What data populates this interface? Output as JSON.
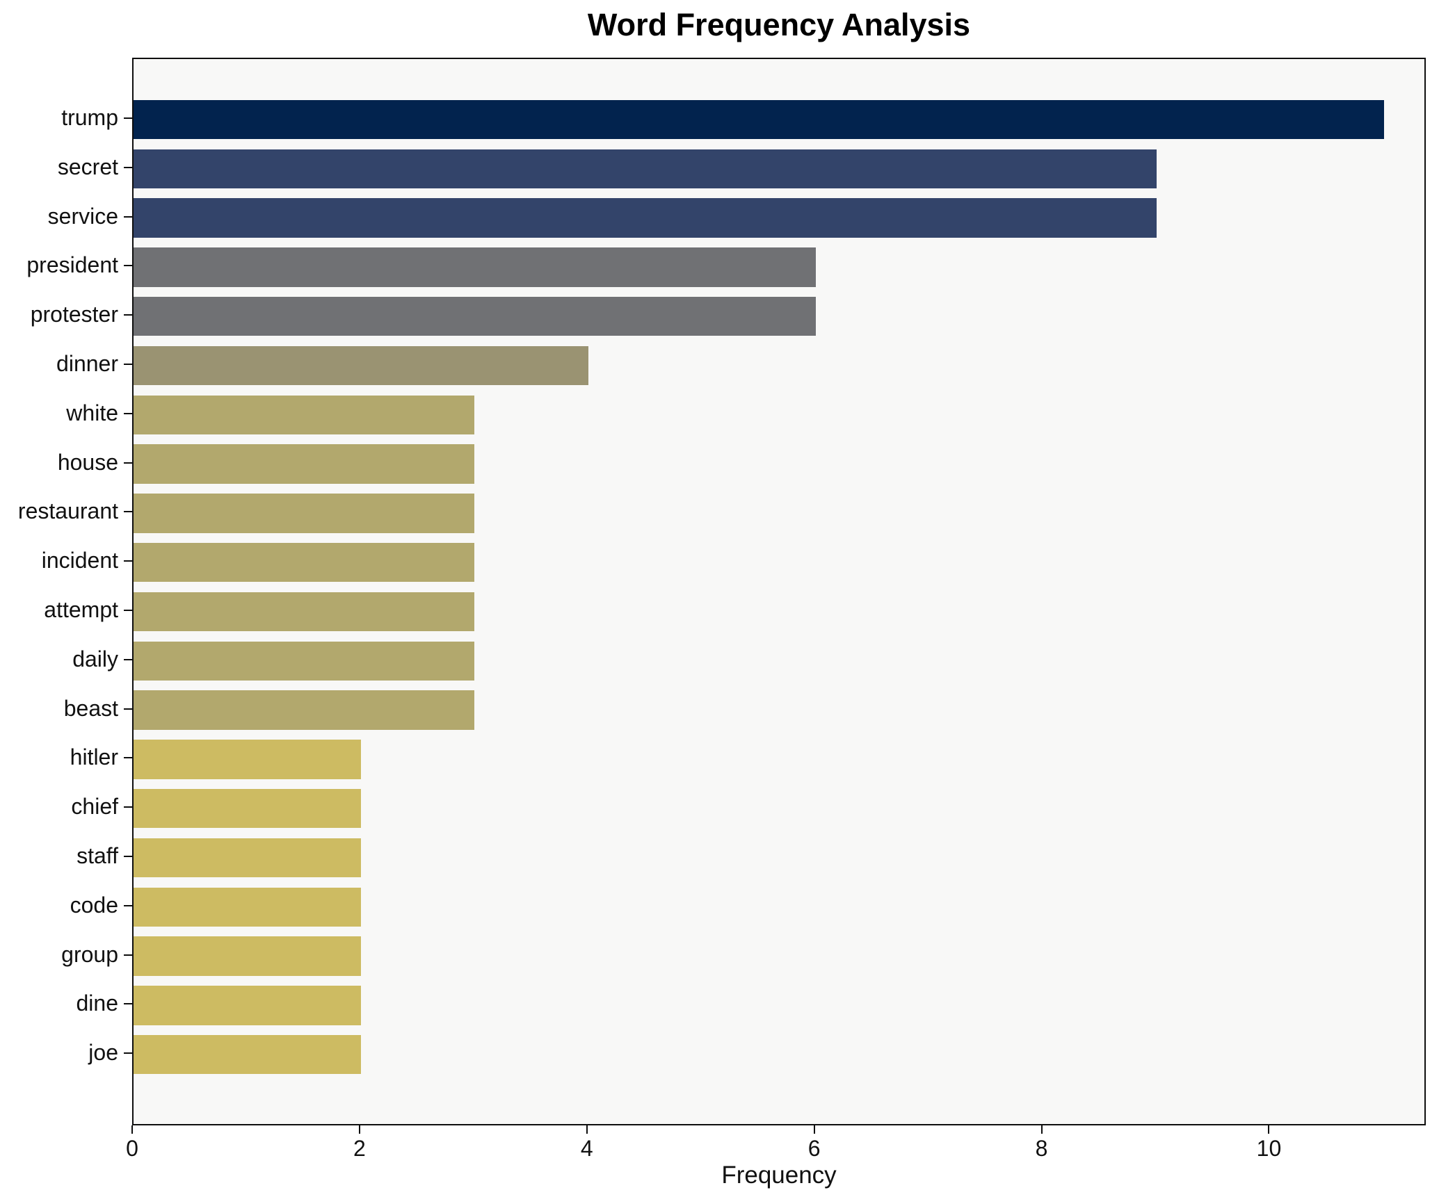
{
  "chart_data": {
    "type": "bar",
    "orientation": "horizontal",
    "title": "Word Frequency Analysis",
    "xlabel": "Frequency",
    "ylabel": "",
    "x_ticks": [
      0,
      2,
      4,
      6,
      8,
      10
    ],
    "xlim": [
      0,
      11.38
    ],
    "grid": false,
    "legend": "none",
    "categories": [
      "trump",
      "secret",
      "service",
      "president",
      "protester",
      "dinner",
      "white",
      "house",
      "restaurant",
      "incident",
      "attempt",
      "daily",
      "beast",
      "hitler",
      "chief",
      "staff",
      "code",
      "group",
      "dine",
      "joe"
    ],
    "values": [
      11,
      9,
      9,
      6,
      6,
      4,
      3,
      3,
      3,
      3,
      3,
      3,
      3,
      2,
      2,
      2,
      2,
      2,
      2,
      2
    ],
    "bar_colors": [
      "#02234e",
      "#33446a",
      "#33446a",
      "#707174",
      "#707174",
      "#9a9372",
      "#b2a86d",
      "#b2a86d",
      "#b2a86d",
      "#b2a86d",
      "#b2a86d",
      "#b2a86d",
      "#b2a86d",
      "#cdbb62",
      "#cdbb62",
      "#cdbb62",
      "#cdbb62",
      "#cdbb62",
      "#cdbb62",
      "#cdbb62"
    ]
  },
  "colors": {
    "plot_background": "#f8f8f7",
    "spine": "#0e0e0e",
    "text": "#111111"
  }
}
